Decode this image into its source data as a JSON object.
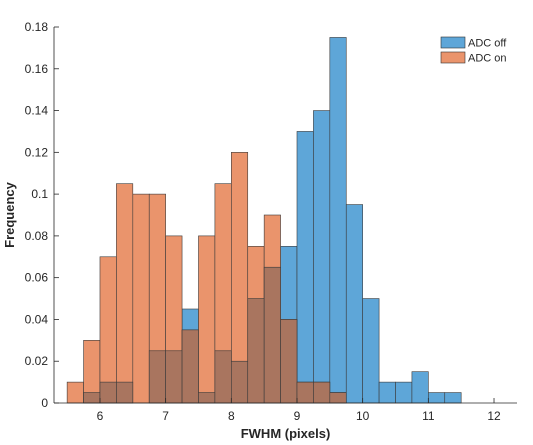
{
  "chart_data": {
    "type": "bar",
    "subtype": "overlapping-histogram",
    "title": "",
    "xlabel": "FWHM (pixels)",
    "ylabel": "Frequency",
    "xlim": [
      5.3,
      12.35
    ],
    "ylim": [
      0,
      0.18
    ],
    "xticks": [
      "6",
      "7",
      "8",
      "9",
      "10",
      "11",
      "12"
    ],
    "yticks": [
      "0",
      "0.02",
      "0.04",
      "0.06",
      "0.08",
      "0.1",
      "0.12",
      "0.14",
      "0.16",
      "0.18"
    ],
    "bin_width": 0.25,
    "legend_position": "top-right",
    "grid": false,
    "overlap_color": "#a9755f",
    "series": [
      {
        "name": "ADC off",
        "color": "#5ea6d8",
        "bins": [
          {
            "x0": 5.75,
            "value": 0.005
          },
          {
            "x0": 6.0,
            "value": 0.01
          },
          {
            "x0": 6.25,
            "value": 0.01
          },
          {
            "x0": 6.5,
            "value": 0.0
          },
          {
            "x0": 6.75,
            "value": 0.025
          },
          {
            "x0": 7.0,
            "value": 0.025
          },
          {
            "x0": 7.25,
            "value": 0.045
          },
          {
            "x0": 7.5,
            "value": 0.005
          },
          {
            "x0": 7.75,
            "value": 0.025
          },
          {
            "x0": 8.0,
            "value": 0.02
          },
          {
            "x0": 8.25,
            "value": 0.05
          },
          {
            "x0": 8.5,
            "value": 0.065
          },
          {
            "x0": 8.75,
            "value": 0.075
          },
          {
            "x0": 9.0,
            "value": 0.13
          },
          {
            "x0": 9.25,
            "value": 0.14
          },
          {
            "x0": 9.5,
            "value": 0.175
          },
          {
            "x0": 9.75,
            "value": 0.095
          },
          {
            "x0": 10.0,
            "value": 0.05
          },
          {
            "x0": 10.25,
            "value": 0.01
          },
          {
            "x0": 10.5,
            "value": 0.01
          },
          {
            "x0": 10.75,
            "value": 0.015
          },
          {
            "x0": 11.0,
            "value": 0.005
          },
          {
            "x0": 11.25,
            "value": 0.005
          }
        ]
      },
      {
        "name": "ADC on",
        "color": "#ea946c",
        "bins": [
          {
            "x0": 5.5,
            "value": 0.01
          },
          {
            "x0": 5.75,
            "value": 0.03
          },
          {
            "x0": 6.0,
            "value": 0.07
          },
          {
            "x0": 6.25,
            "value": 0.105
          },
          {
            "x0": 6.5,
            "value": 0.1
          },
          {
            "x0": 6.75,
            "value": 0.1
          },
          {
            "x0": 7.0,
            "value": 0.08
          },
          {
            "x0": 7.25,
            "value": 0.035
          },
          {
            "x0": 7.5,
            "value": 0.08
          },
          {
            "x0": 7.75,
            "value": 0.105
          },
          {
            "x0": 8.0,
            "value": 0.12
          },
          {
            "x0": 8.25,
            "value": 0.075
          },
          {
            "x0": 8.5,
            "value": 0.09
          },
          {
            "x0": 8.75,
            "value": 0.04
          },
          {
            "x0": 9.0,
            "value": 0.01
          },
          {
            "x0": 9.25,
            "value": 0.01
          },
          {
            "x0": 9.5,
            "value": 0.005
          }
        ]
      }
    ]
  }
}
